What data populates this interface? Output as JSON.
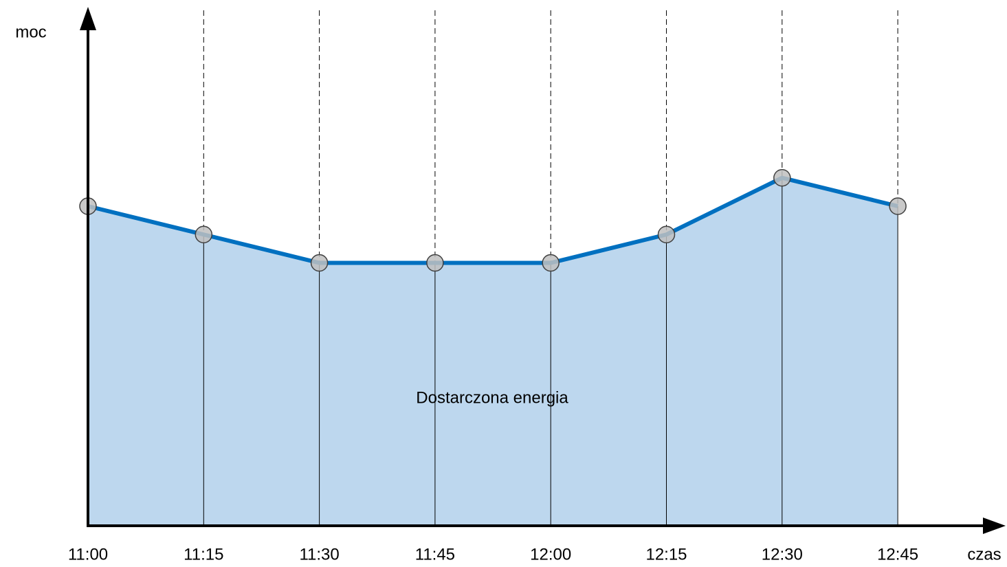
{
  "chart_data": {
    "type": "area",
    "y_label": "moc",
    "x_label": "czas",
    "annotation": "Dostarczona energia",
    "categories": [
      "11:00",
      "11:15",
      "11:30",
      "11:45",
      "12:00",
      "12:15",
      "12:30",
      "12:45"
    ],
    "values": [
      6.2,
      5.65,
      5.1,
      5.1,
      5.1,
      5.65,
      6.75,
      6.2
    ],
    "color": "#0070c0",
    "fill_color": "#bdd7ee",
    "marker_color": "#bfbfbf",
    "ylim": [
      0,
      10
    ]
  }
}
